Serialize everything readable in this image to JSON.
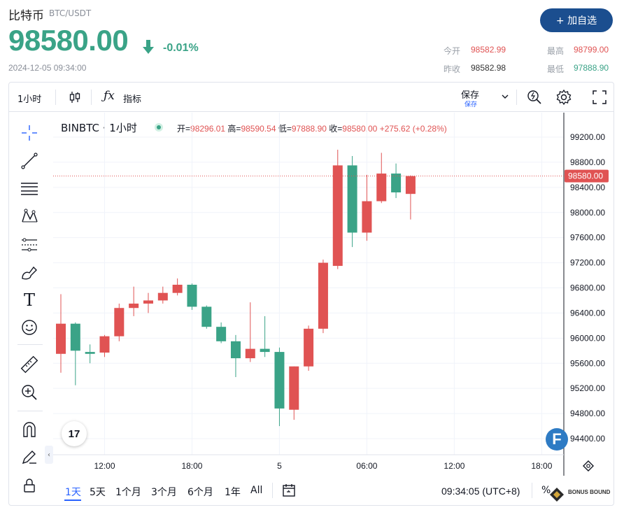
{
  "header": {
    "coin_name": "比特币",
    "pair": "BTC/USDT",
    "price": "98580.00",
    "change": "-0.01%",
    "timestamp": "2024-12-05 09:34:00",
    "add_button": "+ 加自选",
    "stats": {
      "open_label": "今开",
      "open_value": "98582.99",
      "high_label": "最高",
      "high_value": "98799.00",
      "prev_close_label": "昨收",
      "prev_close_value": "98582.98",
      "low_label": "最低",
      "low_value": "97888.90"
    }
  },
  "toolbar": {
    "interval": "1小时",
    "indicators": "指标",
    "save_main": "保存",
    "save_sub": "保存"
  },
  "legend": {
    "symbol": "BINBTC · 1小时",
    "open_key": "开=",
    "open": "98296.01",
    "high_key": "高=",
    "high": "98590.54",
    "low_key": "低=",
    "low": "97888.90",
    "close_key": "收=",
    "close": "98580.00",
    "change": "+275.62 (+0.28%)"
  },
  "bottom_bar": {
    "ranges": [
      "1天",
      "5天",
      "1个月",
      "3个月",
      "6个月",
      "1年",
      "All"
    ],
    "clock": "09:34:05 (UTC+8)",
    "percent": "%"
  },
  "logos": {
    "tv": "17",
    "badge": "F",
    "watermark_top": "BONUS BOUND"
  },
  "colors": {
    "up": "#3aa387",
    "down": "#e05353",
    "accent": "#2962ff",
    "button": "#1b4e8f"
  },
  "chart_data": {
    "type": "candlestick",
    "interval": "1小时",
    "y_ticks": [
      99200,
      98800,
      98400,
      98000,
      97600,
      97200,
      96800,
      96400,
      96000,
      95600,
      95200,
      94800,
      94400
    ],
    "y_tick_labels": [
      "99200.00",
      "98800.00",
      "98400.00",
      "98000.00",
      "97600.00",
      "97200.00",
      "96800.00",
      "96400.00",
      "96000.00",
      "95600.00",
      "95200.00",
      "94800.00",
      "94400.00"
    ],
    "ylim": [
      94100,
      99500
    ],
    "x_ticks": [
      {
        "i": 3,
        "label": "12:00"
      },
      {
        "i": 9,
        "label": "18:00"
      },
      {
        "i": 15,
        "label": "5"
      },
      {
        "i": 21,
        "label": "06:00"
      },
      {
        "i": 27,
        "label": "12:00"
      },
      {
        "i": 33,
        "label": "18:00"
      }
    ],
    "current_price": 98580.0,
    "current_price_label": "98580.00",
    "candles": [
      {
        "o": 95750,
        "h": 96700,
        "l": 95450,
        "c": 96230
      },
      {
        "o": 96230,
        "h": 96250,
        "l": 95250,
        "c": 95800
      },
      {
        "o": 95780,
        "h": 95900,
        "l": 95600,
        "c": 95750
      },
      {
        "o": 95770,
        "h": 96050,
        "l": 95700,
        "c": 96030
      },
      {
        "o": 96030,
        "h": 96550,
        "l": 95950,
        "c": 96480
      },
      {
        "o": 96480,
        "h": 96820,
        "l": 96350,
        "c": 96550
      },
      {
        "o": 96550,
        "h": 96720,
        "l": 96400,
        "c": 96600
      },
      {
        "o": 96600,
        "h": 96820,
        "l": 96550,
        "c": 96720
      },
      {
        "o": 96720,
        "h": 96950,
        "l": 96680,
        "c": 96850
      },
      {
        "o": 96850,
        "h": 96870,
        "l": 96450,
        "c": 96500
      },
      {
        "o": 96500,
        "h": 96520,
        "l": 96150,
        "c": 96180
      },
      {
        "o": 96180,
        "h": 96250,
        "l": 95920,
        "c": 95950
      },
      {
        "o": 95950,
        "h": 96050,
        "l": 95380,
        "c": 95680
      },
      {
        "o": 95680,
        "h": 96570,
        "l": 95620,
        "c": 95830
      },
      {
        "o": 95830,
        "h": 96350,
        "l": 95700,
        "c": 95780
      },
      {
        "o": 95780,
        "h": 95850,
        "l": 94600,
        "c": 94880
      },
      {
        "o": 94860,
        "h": 95550,
        "l": 94700,
        "c": 95550
      },
      {
        "o": 95550,
        "h": 96200,
        "l": 95480,
        "c": 96150
      },
      {
        "o": 96150,
        "h": 97250,
        "l": 96080,
        "c": 97200
      },
      {
        "o": 97150,
        "h": 99000,
        "l": 97100,
        "c": 98750
      },
      {
        "o": 98750,
        "h": 98900,
        "l": 97450,
        "c": 97680
      },
      {
        "o": 97680,
        "h": 98600,
        "l": 97550,
        "c": 98180
      },
      {
        "o": 98180,
        "h": 98950,
        "l": 98150,
        "c": 98620
      },
      {
        "o": 98620,
        "h": 98780,
        "l": 98230,
        "c": 98320
      },
      {
        "o": 98296.01,
        "h": 98590.54,
        "l": 97888.9,
        "c": 98580.0
      }
    ]
  }
}
